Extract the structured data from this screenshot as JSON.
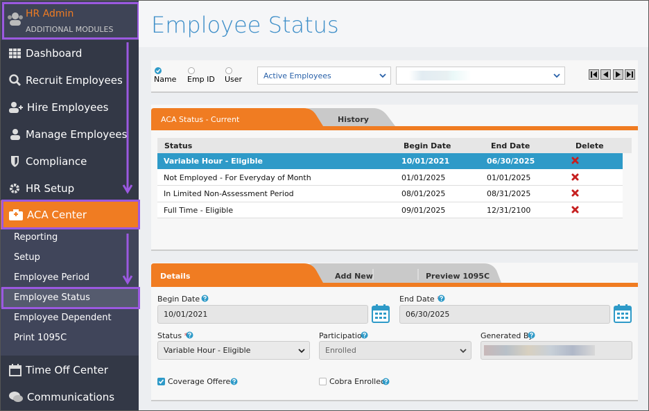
{
  "sidebar": {
    "header": {
      "title": "HR Admin",
      "subtitle": "ADDITIONAL MODULES"
    },
    "items": [
      "Dashboard",
      "Recruit Employees",
      "Hire Employees",
      "Manage Employees",
      "Compliance",
      "HR Setup",
      "ACA Center"
    ],
    "subitems": [
      "Reporting",
      "Setup",
      "Employee Period",
      "Employee Status",
      "Employee Dependent",
      "Print 1095C"
    ],
    "bottom_items": [
      "Time Off Center",
      "Communications"
    ]
  },
  "page": {
    "title": "Employee Status"
  },
  "search": {
    "options": [
      "Name",
      "Emp ID",
      "User"
    ],
    "filter": "Active Employees"
  },
  "status_panel": {
    "tabs": [
      "ACA Status - Current",
      "History"
    ],
    "columns": [
      "Status",
      "Begin Date",
      "End Date",
      "Delete"
    ],
    "rows": [
      [
        "Variable Hour - Eligible",
        "10/01/2021",
        "06/30/2025"
      ],
      [
        "Not Employed - For Everyday of Month",
        "01/01/2025",
        "01/01/2025"
      ],
      [
        "In Limited Non-Assessment Period",
        "08/01/2025",
        "08/31/2025"
      ],
      [
        "Full Time - Eligible",
        "09/01/2025",
        "12/31/2100"
      ]
    ]
  },
  "details": {
    "tabs": [
      "Details",
      "Add New",
      "Preview 1095C"
    ],
    "required_mark": "*",
    "begin_date_label": "Begin Date",
    "begin_date": "10/01/2021",
    "end_date_label": "End Date",
    "end_date": "06/30/2025",
    "status_label": "Status",
    "status": "Variable Hour - Eligible",
    "participation_label": "Participation",
    "participation": "Enrolled",
    "generated_by_label": "Generated By",
    "coverage_offered": "Coverage Offered",
    "cobra_enrolled": "Cobra Enrolled"
  }
}
